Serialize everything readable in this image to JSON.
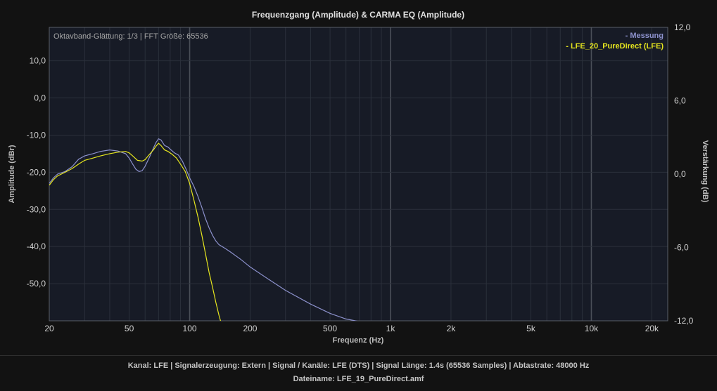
{
  "chart_data": {
    "type": "line",
    "title": "Frequenzgang (Amplitude) & CARMA EQ (Amplitude)",
    "annotation": "Oktavband-Glättung: 1/3 | FFT Größe: 65536",
    "xlabel": "Frequenz (Hz)",
    "ylabel": "Amplitude (dBr)",
    "y2label": "Verstärkung (dB)",
    "xscale": "log",
    "xlim": [
      20,
      24000
    ],
    "ylim": [
      -60,
      19
    ],
    "y2lim": [
      -12,
      12
    ],
    "x_ticks": [
      20,
      50,
      100,
      200,
      500,
      1000,
      2000,
      5000,
      10000,
      20000
    ],
    "x_tick_labels": [
      "20",
      "50",
      "100",
      "200",
      "500",
      "1k",
      "2k",
      "5k",
      "10k",
      "20k"
    ],
    "y_ticks": [
      10,
      0,
      -10,
      -20,
      -30,
      -40,
      -50
    ],
    "y_tick_labels": [
      "10,0",
      "0,0",
      "-10,0",
      "-20,0",
      "-30,0",
      "-40,0",
      "-50,0"
    ],
    "y2_ticks": [
      12,
      6,
      0,
      -6,
      -12
    ],
    "y2_tick_labels": [
      "12,0",
      "6,0",
      "0,0",
      "-6,0",
      "-12,0"
    ],
    "grid": true,
    "legend_position": "top-right",
    "series": [
      {
        "name": "- Messung",
        "color": "#8c91cc",
        "x": [
          20,
          21,
          22,
          24,
          26,
          28,
          30,
          33,
          36,
          40,
          44,
          48,
          50,
          52,
          54,
          56,
          58,
          60,
          63,
          66,
          68,
          70,
          72,
          75,
          78,
          80,
          84,
          88,
          92,
          96,
          100,
          105,
          110,
          115,
          120,
          125,
          130,
          135,
          140,
          150,
          160,
          180,
          200,
          250,
          300,
          400,
          500,
          600,
          700,
          780
        ],
        "y": [
          -23,
          -21.5,
          -20.5,
          -19.8,
          -18.5,
          -16.5,
          -15.6,
          -15,
          -14.4,
          -14,
          -14.3,
          -15,
          -16.2,
          -17.8,
          -19.2,
          -19.8,
          -19.6,
          -18.4,
          -16,
          -13.5,
          -12,
          -11,
          -11.3,
          -12.8,
          -13.2,
          -13.8,
          -14.8,
          -15.4,
          -17,
          -19.2,
          -21.5,
          -23.8,
          -26.5,
          -29.5,
          -32.5,
          -35,
          -37,
          -38.5,
          -39.5,
          -40.5,
          -41.5,
          -43.5,
          -45.5,
          -49,
          -51.8,
          -55.5,
          -58,
          -59.5,
          -60.2,
          -61
        ]
      },
      {
        "name": "- LFE_20_PureDirect (LFE)",
        "color": "#e6e61e",
        "x": [
          20,
          21,
          22,
          24,
          26,
          28,
          30,
          33,
          36,
          40,
          44,
          48,
          50,
          52,
          55,
          58,
          60,
          63,
          66,
          68,
          70,
          72,
          75,
          78,
          82,
          86,
          90,
          95,
          100,
          105,
          110,
          115,
          120,
          125,
          130,
          135,
          140,
          145,
          150
        ],
        "y": [
          -23.5,
          -22,
          -21,
          -20,
          -19,
          -17.8,
          -16.8,
          -16.2,
          -15.6,
          -15,
          -14.6,
          -14.4,
          -14.8,
          -15.6,
          -16.8,
          -17,
          -16.6,
          -15.2,
          -14,
          -13,
          -12.2,
          -12.8,
          -14,
          -14.4,
          -15.2,
          -16.2,
          -17.8,
          -19.8,
          -23,
          -27.5,
          -32,
          -37,
          -42,
          -47,
          -51,
          -55,
          -58.5,
          -61.5,
          -64
        ]
      }
    ]
  },
  "footer": {
    "line1": "Kanal: LFE  |  Signalerzeugung: Extern   |  Signal / Kanäle: LFE (DTS)  |  Signal Länge: 1.4s (65536 Samples)  |  Abtastrate: 48000 Hz",
    "line2": "Dateiname: LFE_19_PureDirect.amf"
  }
}
